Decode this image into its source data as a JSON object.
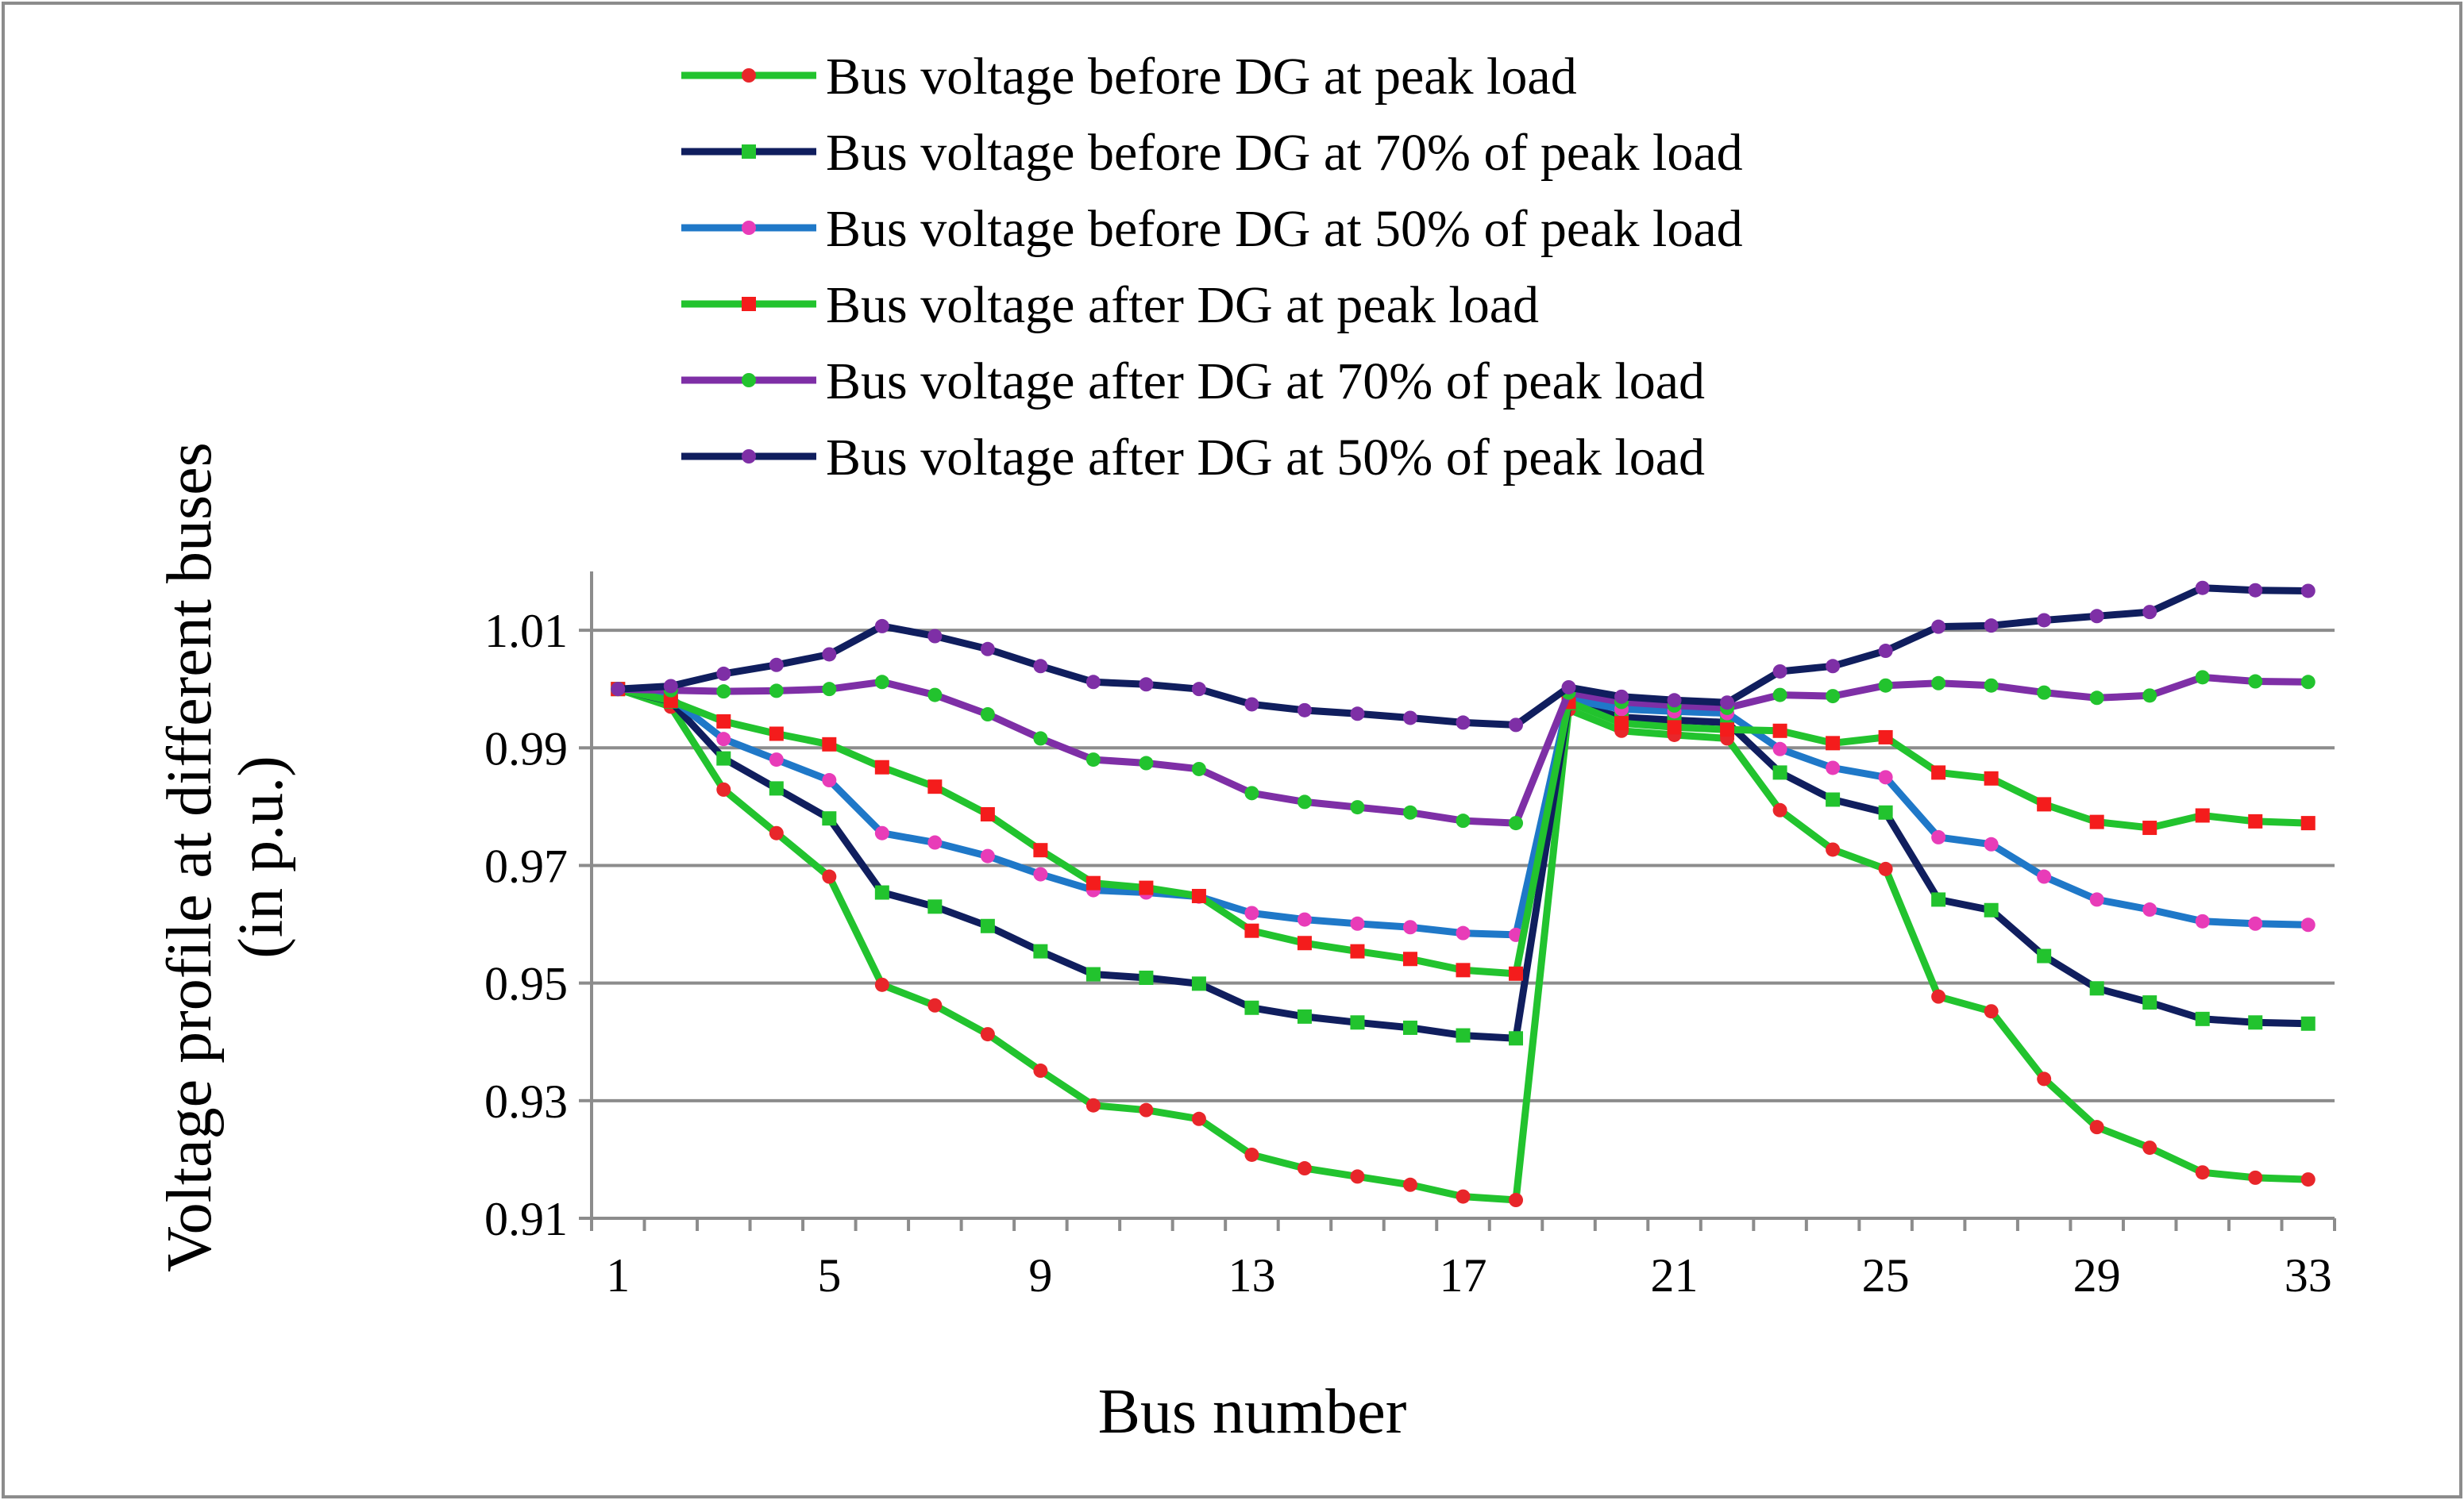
{
  "chart_data": {
    "type": "line",
    "title": "",
    "xlabel": "Bus number",
    "ylabel_lines": [
      "Voltage profile at different buses",
      "(in p.u.)"
    ],
    "x": [
      1,
      2,
      3,
      4,
      5,
      6,
      7,
      8,
      9,
      10,
      11,
      12,
      13,
      14,
      15,
      16,
      17,
      18,
      19,
      20,
      21,
      22,
      23,
      24,
      25,
      26,
      27,
      28,
      29,
      30,
      31,
      32,
      33
    ],
    "x_tick_labels": [
      "1",
      "5",
      "9",
      "13",
      "17",
      "21",
      "25",
      "29",
      "33"
    ],
    "y_tick_labels": [
      "0.91",
      "0.93",
      "0.95",
      "0.97",
      "0.99",
      "1.01"
    ],
    "ylim": [
      0.91,
      1.02
    ],
    "y_ticks": [
      0.91,
      0.93,
      0.95,
      0.97,
      0.99,
      1.01
    ],
    "grid": true,
    "legend_position": "top",
    "series": [
      {
        "name": "Bus voltage before DG at peak load",
        "line_color": "#22C32E",
        "marker_color": "#E8262A",
        "marker": "circle",
        "values": [
          1.0,
          0.997,
          0.9829,
          0.9755,
          0.9681,
          0.9497,
          0.9462,
          0.9413,
          0.9351,
          0.9292,
          0.9284,
          0.9269,
          0.9208,
          0.9185,
          0.9171,
          0.9157,
          0.9137,
          0.9131,
          0.9965,
          0.9929,
          0.9922,
          0.9916,
          0.9794,
          0.9727,
          0.9694,
          0.9477,
          0.9452,
          0.9337,
          0.9255,
          0.922,
          0.9178,
          0.9169,
          0.9166
        ]
      },
      {
        "name": "Bus voltage before DG at 70% of peak load",
        "line_color": "#101E5E",
        "marker_color": "#22C32E",
        "marker": "square",
        "values": [
          1.0,
          0.9979,
          0.9882,
          0.9831,
          0.978,
          0.9654,
          0.963,
          0.9597,
          0.9554,
          0.9515,
          0.9509,
          0.9499,
          0.9458,
          0.9443,
          0.9433,
          0.9424,
          0.9411,
          0.9406,
          0.9976,
          0.9952,
          0.9947,
          0.9943,
          0.9858,
          0.9812,
          0.979,
          0.9642,
          0.9624,
          0.9546,
          0.9491,
          0.9467,
          0.9439,
          0.9433,
          0.9431
        ]
      },
      {
        "name": "Bus voltage before DG at 50% of peak load",
        "line_color": "#1F78C8",
        "marker_color": "#E83CB8",
        "marker": "circle",
        "values": [
          1.0,
          0.9985,
          0.9915,
          0.988,
          0.9845,
          0.9755,
          0.9739,
          0.9716,
          0.9685,
          0.9658,
          0.9654,
          0.9647,
          0.9619,
          0.9608,
          0.9601,
          0.9595,
          0.9585,
          0.9582,
          0.9983,
          0.9966,
          0.9962,
          0.9959,
          0.9898,
          0.9866,
          0.985,
          0.9748,
          0.9736,
          0.9681,
          0.9642,
          0.9625,
          0.9605,
          0.9601,
          0.9599
        ]
      },
      {
        "name": "Bus voltage after DG at peak load",
        "line_color": "#22C32E",
        "marker_color": "#F41C1C",
        "marker": "square",
        "values": [
          1.0,
          0.998,
          0.9945,
          0.9924,
          0.9906,
          0.9867,
          0.9834,
          0.9787,
          0.9726,
          0.967,
          0.9662,
          0.9648,
          0.9589,
          0.9568,
          0.9554,
          0.9541,
          0.9522,
          0.9516,
          0.9978,
          0.9942,
          0.9935,
          0.9931,
          0.9929,
          0.9908,
          0.9918,
          0.9858,
          0.9848,
          0.9804,
          0.9774,
          0.9764,
          0.9785,
          0.9775,
          0.9772
        ]
      },
      {
        "name": "Bus voltage after DG at 70% of peak load",
        "line_color": "#7E2FA6",
        "marker_color": "#22C32E",
        "marker": "circle",
        "values": [
          1.0,
          0.9998,
          0.9996,
          0.9997,
          1.0,
          1.0012,
          0.999,
          0.9957,
          0.9916,
          0.988,
          0.9874,
          0.9864,
          0.9823,
          0.9808,
          0.9799,
          0.979,
          0.9776,
          0.9772,
          0.9994,
          0.9978,
          0.9972,
          0.9968,
          0.999,
          0.9988,
          1.0006,
          1.001,
          1.0006,
          0.9994,
          0.9985,
          0.9989,
          1.002,
          1.0013,
          1.0012
        ]
      },
      {
        "name": "Bus voltage after DG at 50% of peak load",
        "line_color": "#101E5E",
        "marker_color": "#7E2FA6",
        "marker": "circle",
        "values": [
          1.0,
          1.0005,
          1.0026,
          1.0041,
          1.0059,
          1.0107,
          1.009,
          1.0068,
          1.0039,
          1.0012,
          1.0008,
          1.0,
          0.9974,
          0.9964,
          0.9958,
          0.9951,
          0.9943,
          0.9939,
          1.0003,
          0.9987,
          0.9981,
          0.9977,
          1.003,
          1.0039,
          1.0065,
          1.0106,
          1.0108,
          1.0117,
          1.0124,
          1.0131,
          1.0172,
          1.0168,
          1.0167
        ]
      }
    ]
  }
}
